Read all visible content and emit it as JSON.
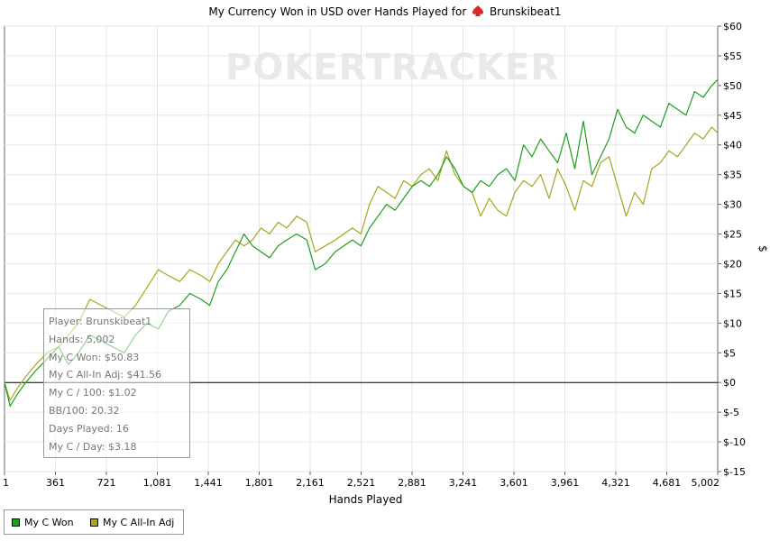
{
  "chart_data": {
    "type": "line",
    "title_prefix": "My Currency Won in USD over Hands Played for",
    "title_player": "Brunskibeat1",
    "xlabel": "Hands Played",
    "ylabel": "$",
    "xlim": [
      1,
      5002
    ],
    "ylim": [
      -15,
      60
    ],
    "x_ticks": [
      "1",
      "361",
      "721",
      "1,081",
      "1,441",
      "1,801",
      "2,161",
      "2,521",
      "2,881",
      "3,241",
      "3,601",
      "3,961",
      "4,321",
      "4,681",
      "5,002"
    ],
    "y_ticks": [
      "$60",
      "$55",
      "$50",
      "$45",
      "$40",
      "$35",
      "$30",
      "$25",
      "$20",
      "$15",
      "$10",
      "$5",
      "$0",
      "$-5",
      "$-10",
      "$-15"
    ],
    "y_tick_values": [
      60,
      55,
      50,
      45,
      40,
      35,
      30,
      25,
      20,
      15,
      10,
      5,
      0,
      -5,
      -10,
      -15
    ],
    "grid": true,
    "legend_position": "bottom-left",
    "series": [
      {
        "name": "My C Won",
        "color": "#1e9e1e",
        "x": [
          1,
          40,
          90,
          150,
          220,
          300,
          380,
          450,
          520,
          600,
          680,
          760,
          840,
          920,
          1000,
          1080,
          1150,
          1230,
          1300,
          1380,
          1440,
          1500,
          1560,
          1620,
          1680,
          1740,
          1800,
          1860,
          1920,
          1980,
          2050,
          2120,
          2180,
          2250,
          2320,
          2380,
          2440,
          2500,
          2560,
          2620,
          2680,
          2740,
          2800,
          2860,
          2920,
          2980,
          3040,
          3100,
          3160,
          3220,
          3280,
          3340,
          3400,
          3460,
          3520,
          3580,
          3640,
          3700,
          3760,
          3820,
          3880,
          3940,
          4000,
          4060,
          4120,
          4180,
          4240,
          4300,
          4360,
          4420,
          4480,
          4540,
          4600,
          4660,
          4720,
          4780,
          4840,
          4900,
          4960,
          5002
        ],
        "values": [
          0,
          -4,
          -2,
          0,
          2,
          4,
          6,
          3,
          5,
          8,
          7,
          6,
          5,
          8,
          10,
          9,
          12,
          13,
          15,
          14,
          13,
          17,
          19,
          22,
          25,
          23,
          22,
          21,
          23,
          24,
          25,
          24,
          19,
          20,
          22,
          23,
          24,
          23,
          26,
          28,
          30,
          29,
          31,
          33,
          34,
          33,
          35,
          38,
          36,
          33,
          32,
          34,
          33,
          35,
          36,
          34,
          40,
          38,
          41,
          39,
          37,
          42,
          36,
          44,
          35,
          38,
          41,
          46,
          43,
          42,
          45,
          44,
          43,
          47,
          46,
          45,
          49,
          48,
          50,
          51
        ],
        "tooltip": {
          "player": "Player: Brunskibeat1",
          "hands": "Hands: 5,002",
          "won": "My C Won: $50.83",
          "allin": "My C All-In Adj: $41.56",
          "per100": "My C / 100: $1.02",
          "bb100": "BB/100: 20.32",
          "days": "Days Played: 16",
          "perday": "My C / Day: $3.18"
        }
      },
      {
        "name": "My C All-In Adj",
        "color": "#a6a61e",
        "x": [
          1,
          40,
          90,
          150,
          220,
          300,
          380,
          450,
          520,
          600,
          680,
          760,
          840,
          920,
          1000,
          1080,
          1150,
          1230,
          1300,
          1380,
          1440,
          1500,
          1560,
          1620,
          1680,
          1740,
          1800,
          1860,
          1920,
          1980,
          2050,
          2120,
          2180,
          2250,
          2320,
          2380,
          2440,
          2500,
          2560,
          2620,
          2680,
          2740,
          2800,
          2860,
          2920,
          2980,
          3040,
          3100,
          3160,
          3220,
          3280,
          3340,
          3400,
          3460,
          3520,
          3580,
          3640,
          3700,
          3760,
          3820,
          3880,
          3940,
          4000,
          4060,
          4120,
          4180,
          4240,
          4300,
          4360,
          4420,
          4480,
          4540,
          4600,
          4660,
          4720,
          4780,
          4840,
          4900,
          4960,
          5002
        ],
        "values": [
          0,
          -3,
          -1,
          1,
          3,
          5,
          6,
          8,
          10,
          14,
          13,
          12,
          11,
          13,
          16,
          19,
          18,
          17,
          19,
          18,
          17,
          20,
          22,
          24,
          23,
          24,
          26,
          25,
          27,
          26,
          28,
          27,
          22,
          23,
          24,
          25,
          26,
          25,
          30,
          33,
          32,
          31,
          34,
          33,
          35,
          36,
          34,
          39,
          35,
          33,
          32,
          28,
          31,
          29,
          28,
          32,
          34,
          33,
          35,
          31,
          36,
          33,
          29,
          34,
          33,
          37,
          38,
          33,
          28,
          32,
          30,
          36,
          37,
          39,
          38,
          40,
          42,
          41,
          43,
          42
        ]
      }
    ]
  },
  "legend": {
    "won_label": "My C Won",
    "allin_label": "My C All-In Adj"
  },
  "watermark": "POKERTRACKER"
}
